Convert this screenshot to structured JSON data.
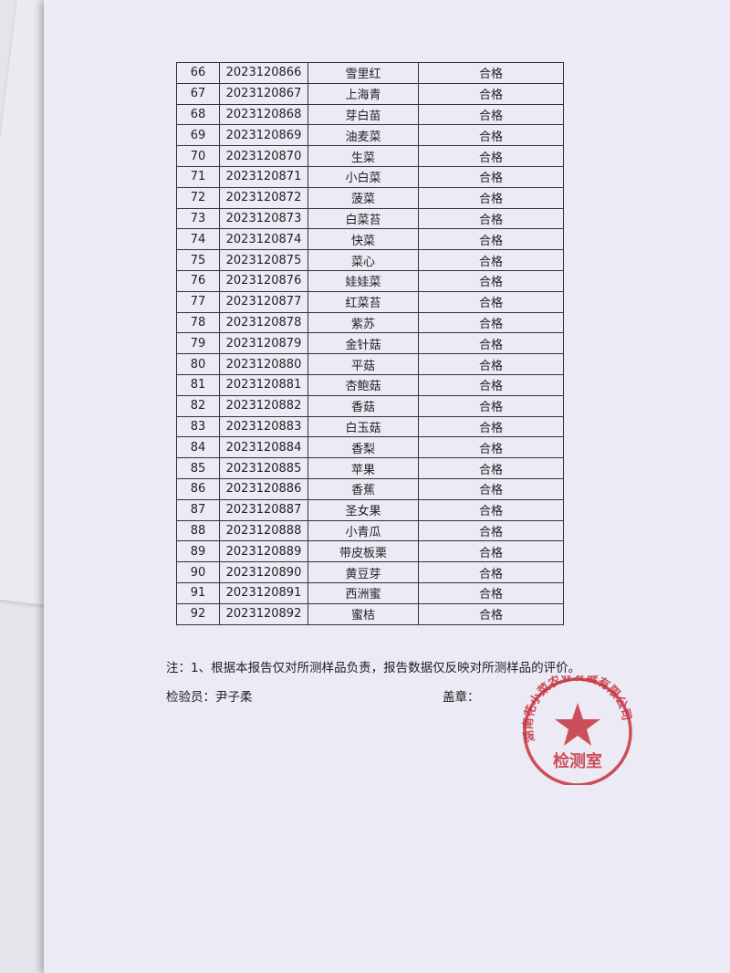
{
  "table": {
    "rows": [
      [
        "66",
        "2023120866",
        "雪里红",
        "合格"
      ],
      [
        "67",
        "2023120867",
        "上海青",
        "合格"
      ],
      [
        "68",
        "2023120868",
        "芽白苗",
        "合格"
      ],
      [
        "69",
        "2023120869",
        "油麦菜",
        "合格"
      ],
      [
        "70",
        "2023120870",
        "生菜",
        "合格"
      ],
      [
        "71",
        "2023120871",
        "小白菜",
        "合格"
      ],
      [
        "72",
        "2023120872",
        "菠菜",
        "合格"
      ],
      [
        "73",
        "2023120873",
        "白菜苔",
        "合格"
      ],
      [
        "74",
        "2023120874",
        "快菜",
        "合格"
      ],
      [
        "75",
        "2023120875",
        "菜心",
        "合格"
      ],
      [
        "76",
        "2023120876",
        "娃娃菜",
        "合格"
      ],
      [
        "77",
        "2023120877",
        "红菜苔",
        "合格"
      ],
      [
        "78",
        "2023120878",
        "紫苏",
        "合格"
      ],
      [
        "79",
        "2023120879",
        "金针菇",
        "合格"
      ],
      [
        "80",
        "2023120880",
        "平菇",
        "合格"
      ],
      [
        "81",
        "2023120881",
        "杏鲍菇",
        "合格"
      ],
      [
        "82",
        "2023120882",
        "香菇",
        "合格"
      ],
      [
        "83",
        "2023120883",
        "白玉菇",
        "合格"
      ],
      [
        "84",
        "2023120884",
        "香梨",
        "合格"
      ],
      [
        "85",
        "2023120885",
        "苹果",
        "合格"
      ],
      [
        "86",
        "2023120886",
        "香蕉",
        "合格"
      ],
      [
        "87",
        "2023120887",
        "圣女果",
        "合格"
      ],
      [
        "88",
        "2023120888",
        "小青瓜",
        "合格"
      ],
      [
        "89",
        "2023120889",
        "带皮板栗",
        "合格"
      ],
      [
        "90",
        "2023120890",
        "黄豆芽",
        "合格"
      ],
      [
        "91",
        "2023120891",
        "西洲蜜",
        "合格"
      ],
      [
        "92",
        "2023120892",
        "蜜桔",
        "合格"
      ]
    ]
  },
  "footer": {
    "note": "注：1、根据本报告仅对所测样品负责，报告数据仅反映对所测样品的评价。",
    "inspector": "检验员：尹子柔",
    "seal_label": "盖章："
  },
  "stamp": {
    "company": "湖南花小菜农业发展有限公司",
    "department": "检测室",
    "color": "#c8323f"
  }
}
